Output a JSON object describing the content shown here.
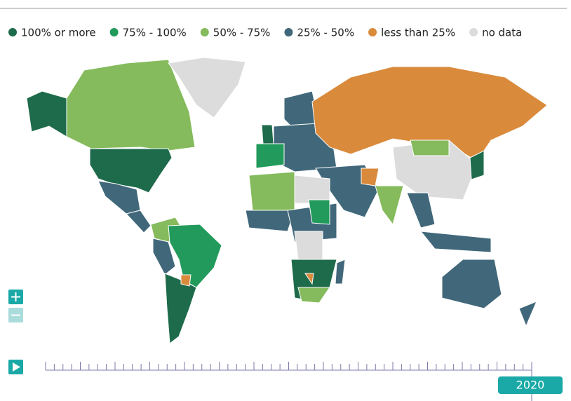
{
  "legend": [
    {
      "label": "100% or more",
      "color": "#1d6b4b"
    },
    {
      "label": "75% - 100%",
      "color": "#229a5b"
    },
    {
      "label": "50% - 75%",
      "color": "#85bb5c"
    },
    {
      "label": "25% - 50%",
      "color": "#41687a"
    },
    {
      "label": "less than 25%",
      "color": "#d98a3b"
    },
    {
      "label": "no data",
      "color": "#dcdcdc"
    }
  ],
  "timeline": {
    "year": "2020"
  }
}
